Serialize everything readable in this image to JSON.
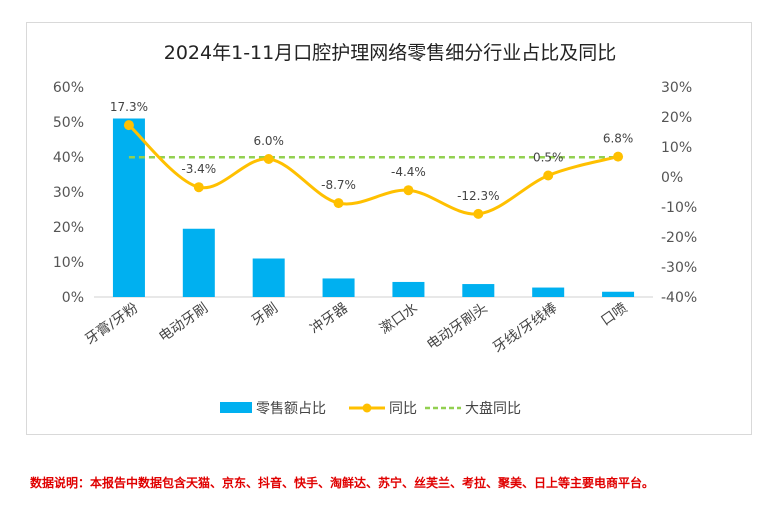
{
  "chart_data": {
    "type": "bar+line",
    "title": "2024年1-11月口腔护理网络零售细分行业占比及同比",
    "categories": [
      "牙膏/牙粉",
      "电动牙刷",
      "牙刷",
      "冲牙器",
      "漱口水",
      "电动牙刷头",
      "牙线/牙线棒",
      "口喷"
    ],
    "series": [
      {
        "name": "零售额占比",
        "type": "bar",
        "axis": "left",
        "color": "#00b0f0",
        "values": [
          51,
          19.5,
          11,
          5.3,
          4.3,
          3.7,
          2.7,
          1.5
        ]
      },
      {
        "name": "同比",
        "type": "line",
        "axis": "right",
        "color": "#ffc000",
        "values": [
          17.3,
          -3.4,
          6.0,
          -8.7,
          -4.4,
          -12.3,
          0.5,
          6.8
        ],
        "labels": [
          "17.3%",
          "-3.4%",
          "6.0%",
          "-8.7%",
          "-4.4%",
          "-12.3%",
          "0.5%",
          "6.8%"
        ]
      },
      {
        "name": "大盘同比",
        "type": "line",
        "style": "dashed",
        "axis": "right",
        "color": "#92d050",
        "values": [
          6.6,
          6.6,
          6.6,
          6.6,
          6.6,
          6.6,
          6.6,
          6.6
        ]
      }
    ],
    "y_left": {
      "min": 0,
      "max": 60,
      "ticks": [
        "0%",
        "10%",
        "20%",
        "30%",
        "40%",
        "50%",
        "60%"
      ]
    },
    "y_right": {
      "min": -40,
      "max": 30,
      "ticks": [
        "-40%",
        "-30%",
        "-20%",
        "-10%",
        "0%",
        "10%",
        "20%",
        "30%"
      ]
    },
    "grid": false,
    "legend_position": "bottom"
  },
  "footnote": "数据说明：本报告中数据包含天猫、京东、抖音、快手、淘鲜达、苏宁、丝芙兰、考拉、聚美、日上等主要电商平台。"
}
